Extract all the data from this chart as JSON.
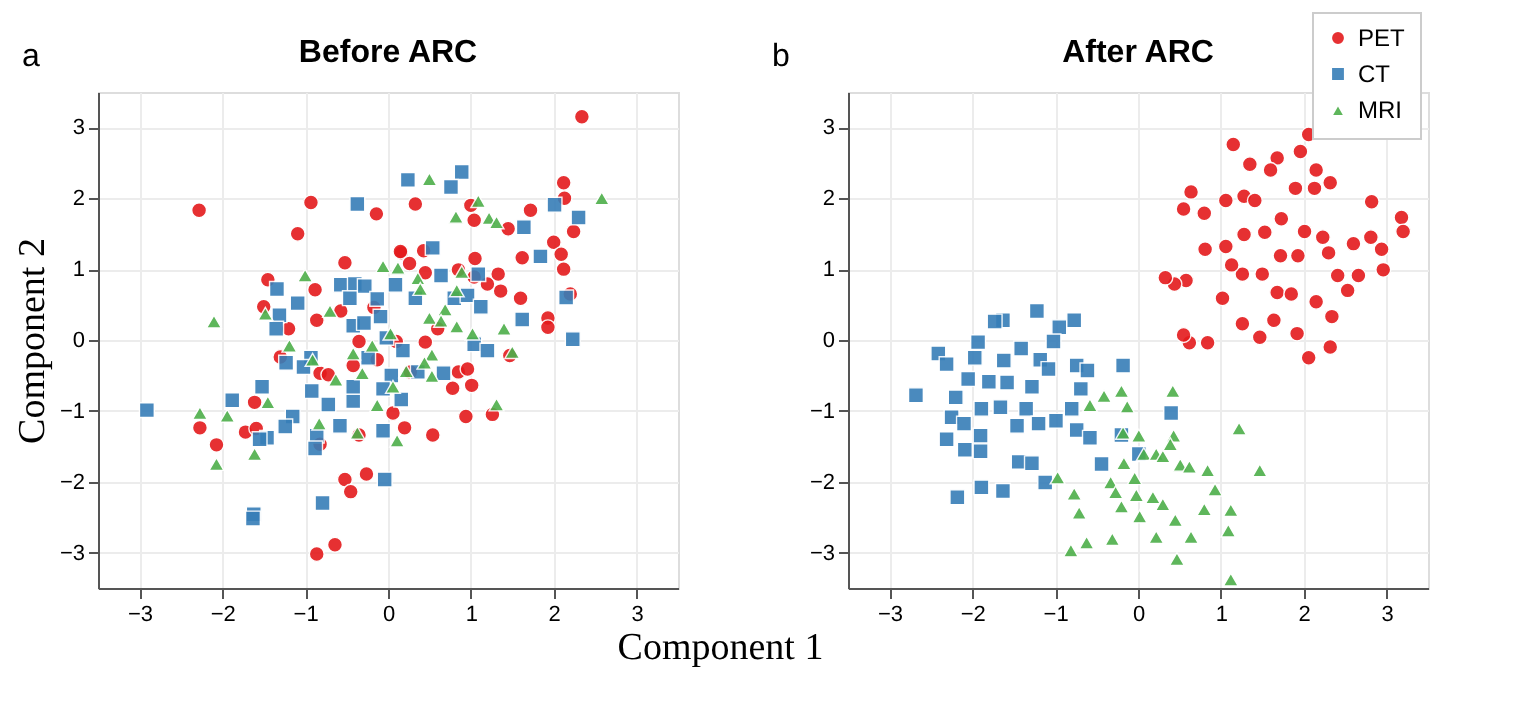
{
  "chart_data": [
    {
      "type": "scatter",
      "title": "Before ARC",
      "annotations": [
        "a"
      ],
      "xlabel": "Component 1",
      "ylabel": "Component 2",
      "xlim": [
        -3.5,
        3.5
      ],
      "ylim": [
        -3.5,
        3.5
      ],
      "xticks": [
        -3,
        -2,
        -1,
        0,
        1,
        2,
        3
      ],
      "yticks": [
        -3,
        -2,
        -1,
        0,
        1,
        2,
        3
      ],
      "grid": true,
      "series": [
        {
          "color": "#e41a1c",
          "marker": "circle",
          "x": [
            2.34,
            -2.28,
            -0.93,
            -0.14,
            0.33,
            -1.09,
            2.12,
            2.13,
            1.72,
            2.24,
            1.45,
            1.0,
            1.04,
            2.0,
            2.09,
            2.12,
            1.62,
            2.2,
            1.6,
            1.93,
            1.93,
            1.36,
            1.2,
            1.05,
            0.85,
            0.45,
            0.16,
            0.26,
            -0.52,
            -1.45,
            -0.88,
            -1.5,
            -0.86,
            -1.2,
            -0.57,
            -0.35,
            -0.17,
            0.1,
            0.45,
            0.6,
            -1.3,
            -0.82,
            -0.72,
            -0.42,
            -0.13,
            0.27,
            0.85,
            0.96,
            0.78,
            1.01,
            1.47,
            -1.61,
            -2.27,
            -2.07,
            -1.72,
            -1.59,
            -0.82,
            -0.35,
            0.06,
            0.2,
            0.54,
            0.94,
            1.26,
            -0.52,
            -0.45,
            -0.26,
            -0.86,
            -0.64,
            0.15,
            0.43,
            0.64,
            1.04,
            1.33
          ],
          "values": [
            3.15,
            1.83,
            1.94,
            1.78,
            1.92,
            1.5,
            2.22,
            2.0,
            1.83,
            1.53,
            1.57,
            1.9,
            1.69,
            1.38,
            1.21,
            1.0,
            1.16,
            0.65,
            0.59,
            0.31,
            0.18,
            0.69,
            0.79,
            1.15,
            0.99,
            0.95,
            1.23,
            1.08,
            1.09,
            0.85,
            0.71,
            0.47,
            0.28,
            0.16,
            0.41,
            -0.02,
            0.46,
            -0.02,
            -0.03,
            0.16,
            -0.24,
            -0.47,
            -0.49,
            -0.36,
            -0.28,
            -0.45,
            -0.45,
            -0.41,
            -0.68,
            -0.64,
            -0.22,
            -0.88,
            -1.24,
            -1.48,
            -1.3,
            -1.25,
            -1.47,
            -1.34,
            -1.03,
            -1.24,
            -1.34,
            -1.08,
            -1.05,
            -1.97,
            -2.14,
            -1.89,
            -3.02,
            -2.89,
            1.25,
            1.26,
            null,
            0.89,
            0.93
          ]
        },
        {
          "color": "#377eb8",
          "marker": "square",
          "x": [
            0.24,
            0.89,
            0.76,
            -0.37,
            2.01,
            2.3,
            1.64,
            1.84,
            0.54,
            0.64,
            1.09,
            0.09,
            0.33,
            0.8,
            0.96,
            1.12,
            2.15,
            1.62,
            2.23,
            -1.34,
            -1.09,
            -1.31,
            -1.35,
            -0.57,
            -0.4,
            -0.28,
            -0.46,
            -0.13,
            -0.42,
            -0.29,
            -0.09,
            -0.02,
            -1.23,
            -0.93,
            -1.02,
            -0.24,
            0.18,
            0.36,
            0.67,
            1.04,
            1.2,
            0.04,
            0.16,
            -0.06,
            -0.42,
            -0.42,
            -0.72,
            -0.92,
            -1.52,
            -1.88,
            -2.91,
            -1.15,
            -1.24,
            -1.46,
            -1.55,
            -0.86,
            -0.88,
            -0.58,
            -0.06,
            -0.04,
            -0.79,
            -1.62,
            -1.63
          ],
          "values": [
            2.26,
            2.37,
            2.16,
            1.92,
            1.91,
            1.73,
            1.59,
            1.18,
            1.3,
            0.91,
            0.93,
            0.78,
            0.59,
            0.59,
            0.63,
            0.47,
            0.6,
            0.29,
            0.01,
            0.72,
            0.52,
            0.35,
            0.16,
            0.78,
            0.79,
            0.76,
            0.59,
            0.58,
            0.2,
            0.24,
            0.33,
            0.03,
            -0.32,
            -0.25,
            -0.38,
            -0.25,
            -0.15,
            -0.45,
            -0.47,
            -0.06,
            -0.15,
            -0.5,
            -0.84,
            -0.69,
            -0.86,
            -0.66,
            -0.91,
            -0.72,
            -0.66,
            -0.85,
            -0.99,
            -1.08,
            -1.22,
            -1.38,
            -1.4,
            -1.35,
            -1.53,
            -1.21,
            -1.28,
            -1.97,
            -2.3,
            -2.46,
            -2.52
          ]
        },
        {
          "color": "#4daf4a",
          "marker": "triangle",
          "x": [
            0.5,
            1.09,
            0.82,
            1.22,
            1.31,
            2.58,
            0.89,
            -0.06,
            0.12,
            0.36,
            0.39,
            0.83,
            -1.0,
            -1.48,
            -2.1,
            -0.7,
            0.5,
            0.69,
            0.64,
            0.83,
            1.02,
            1.4,
            1.5,
            -1.19,
            -0.91,
            -0.42,
            -0.19,
            0.03,
            0.53,
            0.44,
            0.22,
            0.53,
            -0.31,
            -0.63,
            0.06,
            -0.13,
            1.31,
            -1.45,
            -2.27,
            -1.94,
            -0.83,
            -0.37,
            0.11,
            -1.61,
            -2.07
          ],
          "values": [
            2.27,
            1.96,
            1.74,
            1.72,
            1.66,
            2.0,
            0.96,
            1.04,
            1.02,
            0.87,
            0.72,
            0.7,
            0.91,
            0.37,
            0.26,
            0.41,
            0.31,
            0.43,
            0.27,
            0.19,
            0.09,
            0.16,
            -0.17,
            -0.08,
            -0.28,
            -0.19,
            -0.08,
            0.09,
            -0.21,
            -0.32,
            -0.44,
            -0.51,
            -0.47,
            -0.56,
            -0.66,
            -0.92,
            -0.91,
            -0.88,
            -1.03,
            -1.07,
            -1.18,
            -1.31,
            -1.42,
            -1.61,
            -1.75
          ]
        }
      ]
    },
    {
      "type": "scatter",
      "title": "After ARC",
      "annotations": [
        "b"
      ],
      "xlim": [
        -3.5,
        3.5
      ],
      "ylim": [
        -3.5,
        3.5
      ],
      "xticks": [
        -3,
        -2,
        -1,
        0,
        1,
        2,
        3
      ],
      "yticks": [
        -3,
        -2,
        -1,
        0,
        1,
        2,
        3
      ],
      "grid": true,
      "legend": "top right",
      "series": [
        {
          "name": "PET",
          "color": "#e41a1c",
          "marker": "circle",
          "x": [
            1.15,
            2.06,
            1.68,
            1.96,
            2.15,
            2.32,
            1.35,
            1.6,
            0.64,
            0.55,
            0.8,
            1.06,
            1.28,
            1.41,
            1.9,
            2.13,
            2.82,
            3.18,
            3.2,
            2.81,
            2.94,
            2.96,
            2.66,
            2.53,
            2.34,
            2.32,
            2.06,
            1.92,
            1.47,
            1.64,
            1.26,
            0.84,
            0.62,
            0.55,
            0.58,
            0.44,
            0.33,
            1.02,
            1.26,
            1.13,
            1.06,
            1.28,
            1.53,
            1.73,
            2.01,
            2.23,
            1.93,
            1.72,
            1.5,
            1.68,
            1.85,
            2.15,
            2.3,
            2.6,
            2.41,
            0.82,
            0.81
          ],
          "values": [
            2.76,
            2.9,
            2.57,
            2.66,
            2.4,
            2.22,
            2.48,
            2.4,
            2.09,
            1.85,
            1.79,
            1.97,
            2.03,
            1.97,
            2.14,
            2.14,
            1.95,
            1.73,
            1.53,
            1.45,
            1.28,
            0.99,
            0.91,
            0.7,
            0.33,
            -0.1,
            -0.25,
            0.09,
            0.04,
            0.28,
            0.23,
            -0.04,
            -0.04,
            0.07,
            0.84,
            0.79,
            0.88,
            0.59,
            0.93,
            1.06,
            1.32,
            1.49,
            1.52,
            1.71,
            1.53,
            1.45,
            1.19,
            1.19,
            0.93,
            0.67,
            0.65,
            0.54,
            1.23,
            1.36,
            0.91,
            null,
            1.28
          ]
        },
        {
          "name": "CT",
          "color": "#377eb8",
          "marker": "square",
          "x": [
            -1.22,
            -1.63,
            -1.73,
            -0.95,
            -0.77,
            -1.93,
            -2.41,
            -2.31,
            -1.97,
            -1.62,
            -1.41,
            -1.18,
            -1.02,
            -1.08,
            -0.74,
            -0.61,
            -0.18,
            -2.05,
            -1.8,
            -1.58,
            -1.28,
            -2.68,
            -2.2,
            -1.89,
            -1.66,
            -1.35,
            -0.8,
            -0.69,
            -2.25,
            -2.1,
            -2.31,
            -1.9,
            -1.46,
            -1.2,
            -0.99,
            -0.74,
            -0.58,
            -2.09,
            -1.9,
            -1.44,
            -1.28,
            -0.44,
            0.4,
            0.01,
            -0.2,
            -1.12,
            -1.89,
            -1.63,
            -2.18
          ],
          "values": [
            0.41,
            0.28,
            0.26,
            0.18,
            0.28,
            -0.03,
            -0.19,
            -0.34,
            -0.25,
            -0.29,
            -0.12,
            -0.28,
            -0.02,
            -0.41,
            -0.36,
            -0.43,
            -0.36,
            -0.55,
            -0.59,
            -0.6,
            -0.66,
            -0.78,
            -0.81,
            -0.97,
            -0.95,
            -0.97,
            -0.97,
            -0.69,
            -1.09,
            -1.18,
            -1.4,
            -1.35,
            -1.21,
            -1.18,
            -1.14,
            -1.27,
            -1.38,
            -1.55,
            -1.57,
            -1.72,
            -1.74,
            -1.75,
            -1.03,
            -1.61,
            -1.34,
            -2.01,
            -2.08,
            -2.13,
            -2.22
          ]
        },
        {
          "name": "MRI",
          "color": "#4daf4a",
          "marker": "triangle",
          "x": [
            -0.58,
            -0.41,
            -0.2,
            -0.13,
            0.42,
            1.22,
            1.47,
            -0.18,
            0.01,
            -0.17,
            0.07,
            0.22,
            0.3,
            0.43,
            0.39,
            0.51,
            0.62,
            0.84,
            -0.97,
            -0.77,
            -0.71,
            -0.33,
            -0.27,
            -0.2,
            -0.04,
            -0.02,
            0.02,
            0.18,
            0.3,
            0.22,
            0.45,
            0.64,
            0.93,
            0.8,
            1.12,
            1.09,
            0.47,
            -0.81,
            -0.62,
            -0.31,
            1.12
          ],
          "values": [
            -0.92,
            -0.79,
            -0.72,
            -0.94,
            -0.72,
            -1.25,
            -1.84,
            -1.31,
            -1.35,
            -1.74,
            -1.61,
            -1.61,
            -1.64,
            -1.35,
            -1.47,
            -1.76,
            -1.79,
            -1.84,
            -1.94,
            -2.17,
            -2.44,
            -2.01,
            -2.15,
            -2.35,
            -1.95,
            -2.19,
            -2.49,
            -2.22,
            -2.32,
            -2.78,
            -2.54,
            -2.78,
            -2.11,
            -2.39,
            -2.4,
            -2.69,
            -3.09,
            -2.97,
            -2.86,
            -2.81,
            -3.38
          ]
        }
      ]
    }
  ]
}
